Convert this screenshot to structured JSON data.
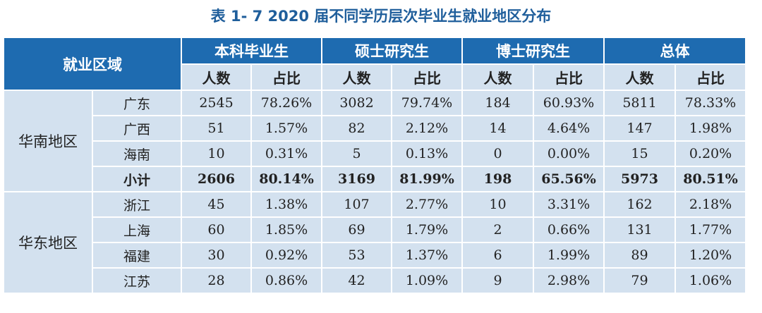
{
  "title": "表 1- 7    2020 届不同学历层次毕业生就业地区分布",
  "header": {
    "region_label": "就业区域",
    "groups": [
      "本科毕业生",
      "硕士研究生",
      "博士研究生",
      "总体"
    ],
    "count_label": "人数",
    "ratio_label": "占比"
  },
  "regions": [
    {
      "name": "华南地区",
      "rows": [
        {
          "province": "广东",
          "values": [
            "2545",
            "78.26%",
            "3082",
            "79.74%",
            "184",
            "60.93%",
            "5811",
            "78.33%"
          ]
        },
        {
          "province": "广西",
          "values": [
            "51",
            "1.57%",
            "82",
            "2.12%",
            "14",
            "4.64%",
            "147",
            "1.98%"
          ]
        },
        {
          "province": "海南",
          "values": [
            "10",
            "0.31%",
            "5",
            "0.13%",
            "0",
            "0.00%",
            "15",
            "0.20%"
          ]
        },
        {
          "province": "小计",
          "values": [
            "2606",
            "80.14%",
            "3169",
            "81.99%",
            "198",
            "65.56%",
            "5973",
            "80.51%"
          ]
        }
      ]
    },
    {
      "name": "华东地区",
      "rows": [
        {
          "province": "浙江",
          "values": [
            "45",
            "1.38%",
            "107",
            "2.77%",
            "10",
            "3.31%",
            "162",
            "2.18%"
          ]
        },
        {
          "province": "上海",
          "values": [
            "60",
            "1.85%",
            "69",
            "1.79%",
            "2",
            "0.66%",
            "131",
            "1.77%"
          ]
        },
        {
          "province": "福建",
          "values": [
            "30",
            "0.92%",
            "53",
            "1.37%",
            "6",
            "1.99%",
            "89",
            "1.20%"
          ]
        },
        {
          "province": "江苏",
          "values": [
            "28",
            "0.86%",
            "42",
            "1.09%",
            "9",
            "2.98%",
            "79",
            "1.06%"
          ]
        }
      ]
    }
  ]
}
